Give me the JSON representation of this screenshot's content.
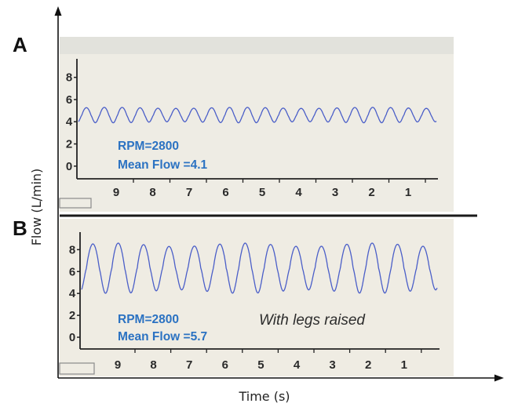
{
  "ylabel": "Flow (L/min)",
  "xlabel": "Time (s)",
  "colors": {
    "trace": "#4a5ec8",
    "annotation": "#2b72c2",
    "panel_bg": "#eeece4",
    "separator": "#1a1a1a"
  },
  "chart_data": [
    {
      "type": "line",
      "panel": "A",
      "annotation_lines": [
        "RPM=2800",
        "Mean Flow =4.1"
      ],
      "note": "",
      "y_ticks": [
        8,
        6,
        4,
        2,
        0
      ],
      "ylim": [
        -1,
        9.6
      ],
      "x_ticks": [
        "9",
        "8",
        "7",
        "6",
        "5",
        "4",
        "3",
        "2",
        "1"
      ],
      "xlim": [
        10,
        0
      ],
      "series": [
        {
          "cycles": 20,
          "min": 3.9,
          "max": 5.3,
          "mean": 4.1
        }
      ]
    },
    {
      "type": "line",
      "panel": "B",
      "annotation_lines": [
        "RPM=2800",
        "Mean Flow =5.7"
      ],
      "note": "With legs raised",
      "y_ticks": [
        8,
        6,
        4,
        2,
        0
      ],
      "ylim": [
        -1,
        9.6
      ],
      "x_ticks": [
        "9",
        "8",
        "7",
        "6",
        "5",
        "4",
        "3",
        "2",
        "1"
      ],
      "xlim": [
        10,
        0
      ],
      "series": [
        {
          "cycles": 14,
          "min": 4.0,
          "max": 8.6,
          "mean": 5.7
        }
      ]
    }
  ]
}
